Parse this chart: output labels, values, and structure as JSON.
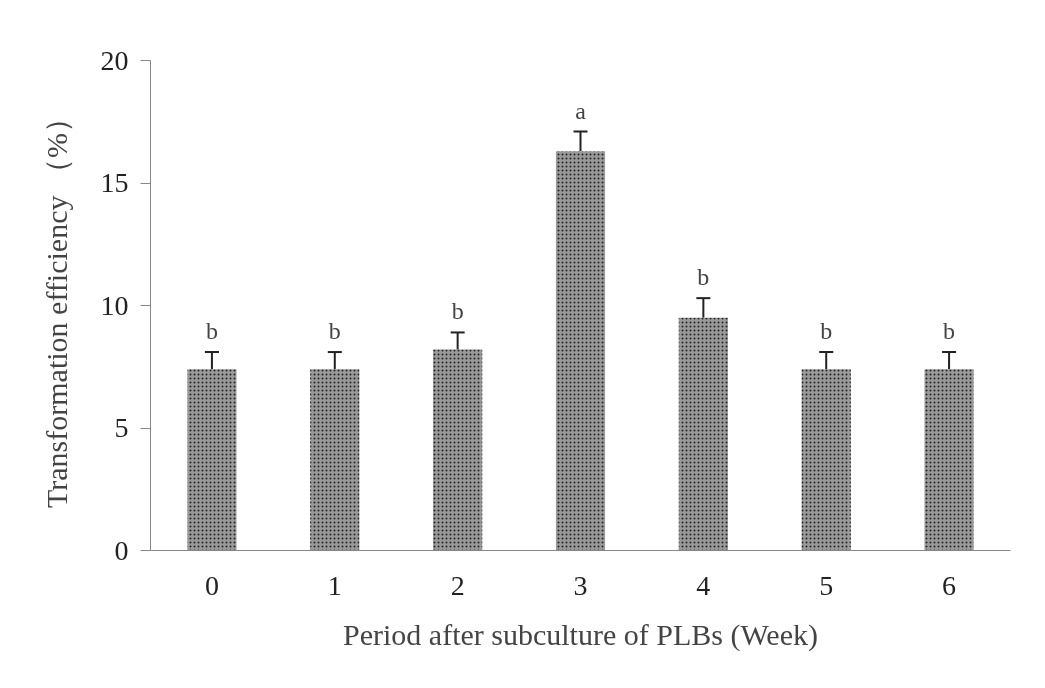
{
  "chart_data": {
    "type": "bar",
    "xlabel": "Period after subculture of PLBs (Week)",
    "ylabel": "Transformation efficiency （%）",
    "categories": [
      "0",
      "1",
      "2",
      "3",
      "4",
      "5",
      "6"
    ],
    "values": [
      7.4,
      7.4,
      8.2,
      16.3,
      9.5,
      7.4,
      7.4
    ],
    "errors": [
      0.7,
      0.7,
      0.7,
      0.8,
      0.8,
      0.7,
      0.7
    ],
    "color": "#9a9a9a",
    "ylim": [
      0,
      20
    ],
    "yticks": [
      0,
      5,
      10,
      15,
      20
    ],
    "grid": false,
    "annotations": [
      {
        "text": "b",
        "x": "0",
        "y": 8.1
      },
      {
        "text": "b",
        "x": "1",
        "y": 8.1
      },
      {
        "text": "b",
        "x": "2",
        "y": 8.9
      },
      {
        "text": "a",
        "x": "3",
        "y": 17.1
      },
      {
        "text": "b",
        "x": "4",
        "y": 10.3
      },
      {
        "text": "b",
        "x": "5",
        "y": 8.1
      },
      {
        "text": "b",
        "x": "6",
        "y": 8.1
      }
    ]
  }
}
